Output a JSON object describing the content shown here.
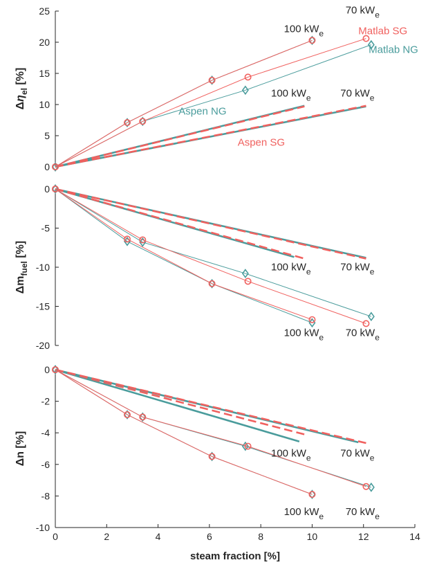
{
  "colors": {
    "natural_gas": "#4a9c9c",
    "syngas": "#f0615f",
    "axis": "#262626"
  },
  "chart_data": {
    "type": "line",
    "xlabel": "steam fraction [%]",
    "xlim": [
      0,
      14
    ],
    "xticks": [
      0,
      2,
      4,
      6,
      8,
      10,
      12,
      14
    ],
    "legend": "none (inline text annotations)",
    "grid": false,
    "panels": [
      {
        "id": "eta",
        "ylabel": {
          "prefix": "Δ",
          "symbol": "η",
          "sub": "el",
          "unit": " [%]"
        },
        "ylim": [
          0,
          25
        ],
        "yticks": [
          0,
          5,
          10,
          15,
          20,
          25
        ],
        "series": [
          {
            "model": "Matlab",
            "fuel": "NG",
            "power": "100 kWe",
            "marker": "diamond",
            "x": [
              0,
              2.8,
              6.1,
              10.0
            ],
            "y": [
              0,
              7.1,
              13.9,
              20.3
            ]
          },
          {
            "model": "Matlab",
            "fuel": "SG",
            "power": "100 kWe",
            "marker": "circle",
            "x": [
              0,
              2.8,
              6.1,
              10.0
            ],
            "y": [
              0,
              7.1,
              13.9,
              20.3
            ]
          },
          {
            "model": "Matlab",
            "fuel": "NG",
            "power": "70 kWe",
            "marker": "diamond",
            "x": [
              0,
              3.4,
              7.4,
              12.3
            ],
            "y": [
              0,
              7.3,
              12.3,
              19.6
            ]
          },
          {
            "model": "Matlab",
            "fuel": "SG",
            "power": "70 kWe",
            "marker": "circle",
            "x": [
              0,
              3.4,
              7.5,
              12.1
            ],
            "y": [
              0,
              7.3,
              14.4,
              20.6
            ]
          },
          {
            "model": "Aspen",
            "fuel": "NG",
            "power": "100 kWe",
            "x": [
              0,
              9.7
            ],
            "y": [
              0,
              9.8
            ]
          },
          {
            "model": "Aspen",
            "fuel": "SG",
            "power": "100 kWe",
            "x": [
              0,
              9.7
            ],
            "y": [
              0,
              9.7
            ]
          },
          {
            "model": "Aspen",
            "fuel": "NG",
            "power": "70 kWe",
            "x": [
              0,
              12.1
            ],
            "y": [
              0,
              9.7
            ]
          },
          {
            "model": "Aspen",
            "fuel": "SG",
            "power": "70 kWe",
            "x": [
              0,
              12.1
            ],
            "y": [
              0,
              9.8
            ]
          }
        ],
        "annotations": [
          {
            "text": "100 kW",
            "sub": "e",
            "color": "axis",
            "x": 8.9,
            "y": 21.6
          },
          {
            "text": "70 kW",
            "sub": "e",
            "color": "axis",
            "x": 11.3,
            "y": 24.6
          },
          {
            "text": "Matlab SG",
            "color": "syngas",
            "x": 11.8,
            "y": 21.3
          },
          {
            "text": "Matlab NG",
            "color": "natural_gas",
            "x": 12.2,
            "y": 18.3
          },
          {
            "text": "100 kW",
            "sub": "e",
            "color": "axis",
            "x": 8.4,
            "y": 11.3
          },
          {
            "text": "70 kW",
            "sub": "e",
            "color": "axis",
            "x": 11.1,
            "y": 11.3
          },
          {
            "text": "Aspen NG",
            "color": "natural_gas",
            "x": 4.8,
            "y": 8.4
          },
          {
            "text": "Aspen SG",
            "color": "syngas",
            "x": 7.1,
            "y": 3.4
          }
        ]
      },
      {
        "id": "fuel",
        "ylabel": {
          "prefix": "Δm",
          "sub": "fuel",
          "unit": " [%]"
        },
        "ylim": [
          -20,
          0
        ],
        "yticks": [
          0,
          -5,
          -10,
          -15,
          -20
        ],
        "series": [
          {
            "model": "Matlab",
            "fuel": "NG",
            "power": "100 kWe",
            "marker": "diamond",
            "x": [
              0,
              2.8,
              6.1,
              10.0
            ],
            "y": [
              0,
              -6.7,
              -12.1,
              -17.1
            ]
          },
          {
            "model": "Matlab",
            "fuel": "SG",
            "power": "100 kWe",
            "marker": "circle",
            "x": [
              0,
              2.8,
              6.1,
              10.0
            ],
            "y": [
              0,
              -6.4,
              -12.1,
              -16.7
            ]
          },
          {
            "model": "Matlab",
            "fuel": "NG",
            "power": "70 kWe",
            "marker": "diamond",
            "x": [
              0,
              3.4,
              7.4,
              12.3
            ],
            "y": [
              0,
              -6.8,
              -10.8,
              -16.3
            ]
          },
          {
            "model": "Matlab",
            "fuel": "SG",
            "power": "70 kWe",
            "marker": "circle",
            "x": [
              0,
              3.4,
              7.5,
              12.1
            ],
            "y": [
              0,
              -6.5,
              -11.8,
              -17.2
            ]
          },
          {
            "model": "Aspen",
            "fuel": "NG",
            "power": "100 kWe",
            "x": [
              0,
              9.3
            ],
            "y": [
              0,
              -8.7
            ]
          },
          {
            "model": "Aspen",
            "fuel": "SG",
            "power": "100 kWe",
            "x": [
              0,
              9.7
            ],
            "y": [
              0,
              -8.9
            ]
          },
          {
            "model": "Aspen",
            "fuel": "NG",
            "power": "70 kWe",
            "x": [
              0,
              12.1
            ],
            "y": [
              0,
              -8.8
            ]
          },
          {
            "model": "Aspen",
            "fuel": "SG",
            "power": "70 kWe",
            "x": [
              0,
              12.1
            ],
            "y": [
              0,
              -8.9
            ]
          }
        ],
        "annotations": [
          {
            "text": "100 kW",
            "sub": "e",
            "color": "axis",
            "x": 8.4,
            "y": -10.4
          },
          {
            "text": "70 kW",
            "sub": "e",
            "color": "axis",
            "x": 11.1,
            "y": -10.4
          },
          {
            "text": "100 kW",
            "sub": "e",
            "color": "axis",
            "x": 8.9,
            "y": -18.8
          },
          {
            "text": "70 kW",
            "sub": "e",
            "color": "axis",
            "x": 11.3,
            "y": -18.8
          }
        ]
      },
      {
        "id": "n",
        "ylabel": {
          "prefix": "Δn",
          "unit": " [%]"
        },
        "ylim": [
          -10,
          0
        ],
        "yticks": [
          0,
          -2,
          -4,
          -6,
          -8,
          -10
        ],
        "series": [
          {
            "model": "Matlab",
            "fuel": "NG",
            "power": "100 kWe",
            "marker": "diamond",
            "x": [
              0,
              2.8,
              6.1,
              10.0
            ],
            "y": [
              0,
              -2.85,
              -5.5,
              -7.9
            ]
          },
          {
            "model": "Matlab",
            "fuel": "SG",
            "power": "100 kWe",
            "marker": "circle",
            "x": [
              0,
              2.8,
              6.1,
              10.0
            ],
            "y": [
              0,
              -2.85,
              -5.5,
              -7.9
            ]
          },
          {
            "model": "Matlab",
            "fuel": "NG",
            "power": "70 kWe",
            "marker": "diamond",
            "x": [
              0,
              3.4,
              7.4,
              12.3
            ],
            "y": [
              0,
              -3.0,
              -4.85,
              -7.45
            ]
          },
          {
            "model": "Matlab",
            "fuel": "SG",
            "power": "70 kWe",
            "marker": "circle",
            "x": [
              0,
              3.4,
              7.5,
              12.1
            ],
            "y": [
              0,
              -3.0,
              -4.85,
              -7.4
            ]
          },
          {
            "model": "Aspen",
            "fuel": "NG",
            "power": "100 kWe",
            "x": [
              0,
              9.5
            ],
            "y": [
              0,
              -4.55
            ]
          },
          {
            "model": "Aspen",
            "fuel": "SG",
            "power": "100 kWe",
            "x": [
              0,
              9.7
            ],
            "y": [
              0,
              -4.1
            ]
          },
          {
            "model": "Aspen",
            "fuel": "NG",
            "power": "70 kWe",
            "x": [
              0,
              11.8
            ],
            "y": [
              0,
              -4.6
            ]
          },
          {
            "model": "Aspen",
            "fuel": "SG",
            "power": "70 kWe",
            "x": [
              0,
              12.1
            ],
            "y": [
              0,
              -4.65
            ]
          }
        ],
        "annotations": [
          {
            "text": "100 kW",
            "sub": "e",
            "color": "axis",
            "x": 8.4,
            "y": -5.5
          },
          {
            "text": "70 kW",
            "sub": "e",
            "color": "axis",
            "x": 11.1,
            "y": -5.5
          },
          {
            "text": "100 kW",
            "sub": "e",
            "color": "axis",
            "x": 8.9,
            "y": -9.2
          },
          {
            "text": "70 kW",
            "sub": "e",
            "color": "axis",
            "x": 11.3,
            "y": -9.2
          }
        ]
      }
    ]
  }
}
